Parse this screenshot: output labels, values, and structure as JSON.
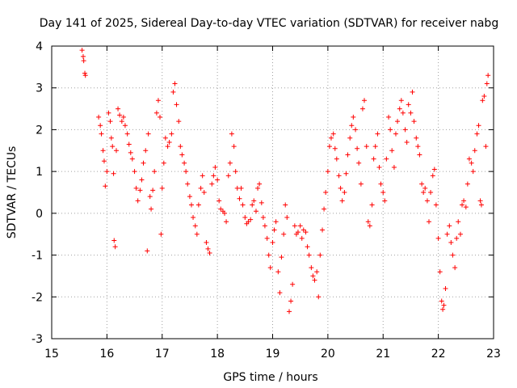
{
  "chart_data": {
    "type": "scatter",
    "title": "Day 141 of 2025, Sidereal Day-to-day VTEC variation (SDTVAR) for receiver nabg",
    "xlabel": "GPS time / hours",
    "ylabel": "SDTVAR / TECUs",
    "xlim": [
      15,
      23
    ],
    "ylim": [
      -3,
      4
    ],
    "xticks": [
      15,
      16,
      17,
      18,
      19,
      20,
      21,
      22,
      23
    ],
    "yticks": [
      -3,
      -2,
      -1,
      0,
      1,
      2,
      3,
      4
    ],
    "grid": true,
    "marker": "+",
    "color": "#ff0000",
    "series": [
      {
        "name": "SDTVAR",
        "points": [
          [
            15.55,
            3.9
          ],
          [
            15.57,
            3.75
          ],
          [
            15.58,
            3.65
          ],
          [
            15.6,
            3.35
          ],
          [
            15.61,
            3.3
          ],
          [
            15.85,
            2.3
          ],
          [
            15.88,
            2.1
          ],
          [
            15.9,
            1.9
          ],
          [
            15.93,
            1.5
          ],
          [
            15.95,
            1.25
          ],
          [
            15.97,
            0.65
          ],
          [
            16.0,
            1.0
          ],
          [
            16.03,
            2.4
          ],
          [
            16.06,
            2.2
          ],
          [
            16.08,
            1.8
          ],
          [
            16.1,
            1.6
          ],
          [
            16.12,
            0.95
          ],
          [
            16.13,
            -0.65
          ],
          [
            16.15,
            -0.8
          ],
          [
            16.17,
            1.5
          ],
          [
            16.2,
            2.5
          ],
          [
            16.23,
            2.35
          ],
          [
            16.27,
            2.2
          ],
          [
            16.3,
            2.3
          ],
          [
            16.33,
            2.1
          ],
          [
            16.37,
            1.9
          ],
          [
            16.4,
            1.65
          ],
          [
            16.43,
            1.45
          ],
          [
            16.46,
            1.3
          ],
          [
            16.5,
            1.0
          ],
          [
            16.53,
            0.6
          ],
          [
            16.56,
            0.3
          ],
          [
            16.6,
            0.55
          ],
          [
            16.63,
            0.8
          ],
          [
            16.66,
            1.2
          ],
          [
            16.7,
            1.5
          ],
          [
            16.73,
            -0.9
          ],
          [
            16.75,
            1.9
          ],
          [
            16.78,
            0.4
          ],
          [
            16.8,
            0.1
          ],
          [
            16.83,
            0.55
          ],
          [
            16.86,
            1.0
          ],
          [
            16.9,
            2.4
          ],
          [
            16.93,
            2.7
          ],
          [
            16.96,
            2.3
          ],
          [
            16.98,
            -0.5
          ],
          [
            17.0,
            0.6
          ],
          [
            17.03,
            1.2
          ],
          [
            17.06,
            1.8
          ],
          [
            17.1,
            1.6
          ],
          [
            17.13,
            1.7
          ],
          [
            17.17,
            1.9
          ],
          [
            17.2,
            2.9
          ],
          [
            17.23,
            3.1
          ],
          [
            17.26,
            2.6
          ],
          [
            17.3,
            2.2
          ],
          [
            17.33,
            1.6
          ],
          [
            17.36,
            1.4
          ],
          [
            17.4,
            1.2
          ],
          [
            17.43,
            1.0
          ],
          [
            17.46,
            0.7
          ],
          [
            17.5,
            0.4
          ],
          [
            17.53,
            0.2
          ],
          [
            17.56,
            -0.1
          ],
          [
            17.6,
            -0.3
          ],
          [
            17.63,
            -0.5
          ],
          [
            17.66,
            0.2
          ],
          [
            17.7,
            0.6
          ],
          [
            17.73,
            0.9
          ],
          [
            17.76,
            0.5
          ],
          [
            17.8,
            -0.7
          ],
          [
            17.83,
            -0.85
          ],
          [
            17.86,
            -0.95
          ],
          [
            17.9,
            0.7
          ],
          [
            17.93,
            0.9
          ],
          [
            17.96,
            1.1
          ],
          [
            18.0,
            0.8
          ],
          [
            18.03,
            0.3
          ],
          [
            18.06,
            0.1
          ],
          [
            18.1,
            0.05
          ],
          [
            18.13,
            0.0
          ],
          [
            18.16,
            -0.2
          ],
          [
            18.2,
            0.9
          ],
          [
            18.23,
            1.2
          ],
          [
            18.26,
            1.9
          ],
          [
            18.3,
            1.6
          ],
          [
            18.33,
            1.0
          ],
          [
            18.36,
            0.6
          ],
          [
            18.4,
            0.35
          ],
          [
            18.43,
            0.6
          ],
          [
            18.46,
            0.2
          ],
          [
            18.5,
            -0.1
          ],
          [
            18.53,
            -0.25
          ],
          [
            18.56,
            -0.2
          ],
          [
            18.6,
            -0.15
          ],
          [
            18.63,
            0.2
          ],
          [
            18.66,
            0.3
          ],
          [
            18.7,
            0.05
          ],
          [
            18.73,
            0.6
          ],
          [
            18.76,
            0.7
          ],
          [
            18.8,
            0.25
          ],
          [
            18.83,
            -0.1
          ],
          [
            18.86,
            -0.3
          ],
          [
            18.9,
            -0.6
          ],
          [
            18.93,
            -1.0
          ],
          [
            18.96,
            -1.3
          ],
          [
            19.0,
            -0.7
          ],
          [
            19.03,
            -0.4
          ],
          [
            19.06,
            -0.2
          ],
          [
            19.1,
            -1.4
          ],
          [
            19.13,
            -1.9
          ],
          [
            19.16,
            -1.05
          ],
          [
            19.2,
            -0.5
          ],
          [
            19.23,
            0.2
          ],
          [
            19.26,
            -0.1
          ],
          [
            19.3,
            -2.35
          ],
          [
            19.33,
            -2.1
          ],
          [
            19.36,
            -1.7
          ],
          [
            19.4,
            -0.3
          ],
          [
            19.43,
            -0.5
          ],
          [
            19.46,
            -0.45
          ],
          [
            19.5,
            -0.3
          ],
          [
            19.53,
            -0.6
          ],
          [
            19.56,
            -0.4
          ],
          [
            19.6,
            -0.45
          ],
          [
            19.63,
            -0.8
          ],
          [
            19.66,
            -1.0
          ],
          [
            19.7,
            -1.3
          ],
          [
            19.73,
            -1.5
          ],
          [
            19.76,
            -1.6
          ],
          [
            19.8,
            -1.4
          ],
          [
            19.83,
            -2.0
          ],
          [
            19.86,
            -1.0
          ],
          [
            19.9,
            -0.4
          ],
          [
            19.93,
            0.1
          ],
          [
            19.96,
            0.5
          ],
          [
            20.0,
            1.0
          ],
          [
            20.03,
            1.6
          ],
          [
            20.06,
            1.8
          ],
          [
            20.1,
            1.9
          ],
          [
            20.13,
            1.55
          ],
          [
            20.16,
            1.3
          ],
          [
            20.2,
            0.9
          ],
          [
            20.23,
            0.6
          ],
          [
            20.26,
            0.3
          ],
          [
            20.3,
            0.5
          ],
          [
            20.33,
            0.95
          ],
          [
            20.36,
            1.4
          ],
          [
            20.4,
            1.8
          ],
          [
            20.43,
            2.1
          ],
          [
            20.46,
            2.3
          ],
          [
            20.5,
            2.0
          ],
          [
            20.53,
            1.55
          ],
          [
            20.56,
            1.2
          ],
          [
            20.6,
            0.7
          ],
          [
            20.63,
            2.5
          ],
          [
            20.66,
            2.7
          ],
          [
            20.7,
            1.6
          ],
          [
            20.73,
            -0.2
          ],
          [
            20.76,
            -0.3
          ],
          [
            20.8,
            0.2
          ],
          [
            20.83,
            1.3
          ],
          [
            20.86,
            1.6
          ],
          [
            20.9,
            1.9
          ],
          [
            20.93,
            1.1
          ],
          [
            20.96,
            0.7
          ],
          [
            21.0,
            0.5
          ],
          [
            21.03,
            0.3
          ],
          [
            21.06,
            1.3
          ],
          [
            21.1,
            2.3
          ],
          [
            21.13,
            2.0
          ],
          [
            21.16,
            1.5
          ],
          [
            21.2,
            1.1
          ],
          [
            21.23,
            1.9
          ],
          [
            21.26,
            2.2
          ],
          [
            21.3,
            2.5
          ],
          [
            21.33,
            2.7
          ],
          [
            21.36,
            2.4
          ],
          [
            21.4,
            2.0
          ],
          [
            21.43,
            1.7
          ],
          [
            21.46,
            2.6
          ],
          [
            21.5,
            2.4
          ],
          [
            21.53,
            2.9
          ],
          [
            21.56,
            2.2
          ],
          [
            21.6,
            1.8
          ],
          [
            21.63,
            1.6
          ],
          [
            21.66,
            1.4
          ],
          [
            21.7,
            0.7
          ],
          [
            21.73,
            0.5
          ],
          [
            21.76,
            0.6
          ],
          [
            21.8,
            0.3
          ],
          [
            21.83,
            -0.2
          ],
          [
            21.86,
            0.5
          ],
          [
            21.9,
            0.9
          ],
          [
            21.93,
            1.05
          ],
          [
            21.96,
            0.2
          ],
          [
            22.0,
            -0.6
          ],
          [
            22.03,
            -1.4
          ],
          [
            22.06,
            -2.1
          ],
          [
            22.08,
            -2.3
          ],
          [
            22.1,
            -2.2
          ],
          [
            22.13,
            -1.8
          ],
          [
            22.16,
            -0.5
          ],
          [
            22.2,
            -0.3
          ],
          [
            22.23,
            -0.7
          ],
          [
            22.26,
            -1.0
          ],
          [
            22.3,
            -1.3
          ],
          [
            22.33,
            -0.6
          ],
          [
            22.36,
            -0.2
          ],
          [
            22.4,
            -0.5
          ],
          [
            22.43,
            0.2
          ],
          [
            22.46,
            0.3
          ],
          [
            22.5,
            0.15
          ],
          [
            22.53,
            0.7
          ],
          [
            22.56,
            1.3
          ],
          [
            22.6,
            1.2
          ],
          [
            22.63,
            1.0
          ],
          [
            22.66,
            1.5
          ],
          [
            22.7,
            1.9
          ],
          [
            22.73,
            2.1
          ],
          [
            22.76,
            0.3
          ],
          [
            22.78,
            0.2
          ],
          [
            22.8,
            2.7
          ],
          [
            22.83,
            2.8
          ],
          [
            22.86,
            1.6
          ],
          [
            22.88,
            3.1
          ],
          [
            22.9,
            3.3
          ]
        ]
      }
    ]
  }
}
